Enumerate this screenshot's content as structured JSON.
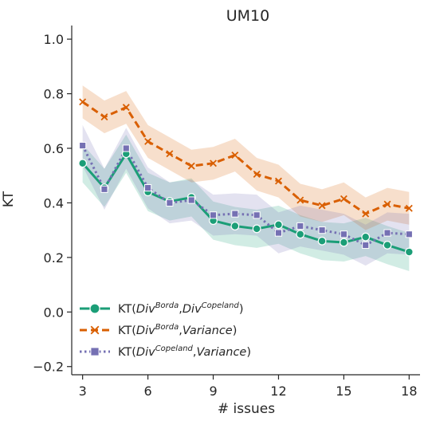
{
  "chart_data": {
    "type": "line",
    "title": "UM10",
    "xlabel": "# issues",
    "ylabel": "KT",
    "xlim": [
      2.5,
      18.5
    ],
    "ylim": [
      -0.23,
      1.05
    ],
    "xticks": [
      3,
      6,
      9,
      12,
      15,
      18
    ],
    "yticks": [
      -0.2,
      0.0,
      0.2,
      0.4,
      0.6,
      0.8,
      1.0
    ],
    "xtick_labels": [
      "3",
      "6",
      "9",
      "12",
      "15",
      "18"
    ],
    "ytick_labels": [
      "−0.2",
      "0.0",
      "0.2",
      "0.4",
      "0.6",
      "0.8",
      "1.0"
    ],
    "grid": false,
    "legend_position": "lower-left",
    "x": [
      3,
      4,
      5,
      6,
      7,
      8,
      9,
      10,
      11,
      12,
      13,
      14,
      15,
      16,
      17,
      18
    ],
    "series": [
      {
        "label_parts": {
          "prefix": "KT(",
          "a": "Div",
          "a_sup": "Borda",
          "sep": ",",
          "b": "Div",
          "b_sup": "Copeland",
          "suffix": ")"
        },
        "color": "#1b9e77",
        "marker": "circle",
        "linestyle": "solid",
        "values": [
          0.545,
          0.455,
          0.58,
          0.44,
          0.405,
          0.42,
          0.335,
          0.315,
          0.305,
          0.32,
          0.285,
          0.26,
          0.255,
          0.275,
          0.245,
          0.22
        ],
        "band": 0.07
      },
      {
        "label_parts": {
          "prefix": "KT(",
          "a": "Div",
          "a_sup": "Borda",
          "sep": ",",
          "b": "Variance",
          "b_sup": "",
          "suffix": ")"
        },
        "color": "#d95f02",
        "marker": "x",
        "linestyle": "dashed",
        "values": [
          0.77,
          0.715,
          0.75,
          0.625,
          0.58,
          0.535,
          0.545,
          0.575,
          0.505,
          0.48,
          0.41,
          0.39,
          0.415,
          0.36,
          0.395,
          0.38
        ],
        "band": 0.06
      },
      {
        "label_parts": {
          "prefix": "KT(",
          "a": "Div",
          "a_sup": "Copeland",
          "sep": ",",
          "b": "Variance",
          "b_sup": "",
          "suffix": ")"
        },
        "color": "#7570b3",
        "marker": "square",
        "linestyle": "dotted",
        "values": [
          0.61,
          0.45,
          0.6,
          0.455,
          0.4,
          0.41,
          0.355,
          0.36,
          0.355,
          0.29,
          0.315,
          0.3,
          0.285,
          0.245,
          0.29,
          0.285
        ],
        "band": 0.075
      }
    ]
  }
}
